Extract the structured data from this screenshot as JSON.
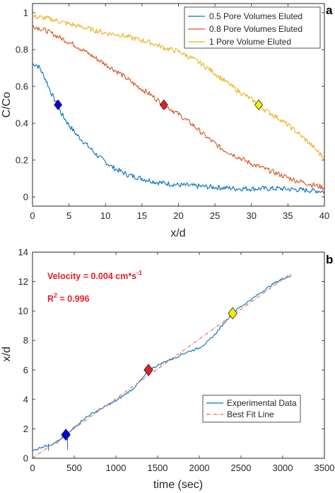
{
  "colors": {
    "blue": "#0072BD",
    "orange": "#D95319",
    "yellow": "#EDB120",
    "fit": "#e8605a",
    "annotation": "#e8202a",
    "axis": "#262626"
  },
  "chart_data": [
    {
      "panel": "a",
      "type": "line",
      "xlabel": "x/d",
      "ylabel": "C/Co",
      "xlim": [
        0,
        40
      ],
      "ylim": [
        -0.05,
        1.05
      ],
      "xticks": [
        0,
        5,
        10,
        15,
        20,
        25,
        30,
        35,
        40
      ],
      "yticks": [
        0,
        0.2,
        0.4,
        0.6,
        0.8,
        1
      ],
      "grid": false,
      "legend_position": "top-right",
      "series": [
        {
          "name": "0.5 Pore Volumes Eluted",
          "color": "#0072BD",
          "x": [
            0,
            0.5,
            1,
            1.5,
            2,
            2.5,
            3,
            3.5,
            4,
            5,
            6,
            7,
            8,
            9,
            10,
            11,
            12,
            13,
            14,
            15,
            16,
            17,
            18,
            19,
            20,
            22,
            24,
            26,
            28,
            30,
            32,
            34,
            36,
            38,
            40
          ],
          "y": [
            0.72,
            0.72,
            0.7,
            0.66,
            0.62,
            0.57,
            0.53,
            0.49,
            0.45,
            0.39,
            0.34,
            0.3,
            0.26,
            0.22,
            0.19,
            0.16,
            0.14,
            0.12,
            0.11,
            0.1,
            0.09,
            0.08,
            0.075,
            0.07,
            0.065,
            0.06,
            0.055,
            0.05,
            0.045,
            0.045,
            0.045,
            0.045,
            0.04,
            0.035,
            0.03
          ]
        },
        {
          "name": "0.8 Pore Volumes Eluted",
          "color": "#D95319",
          "x": [
            0,
            2,
            4,
            6,
            8,
            10,
            12,
            14,
            16,
            18,
            20,
            22,
            24,
            26,
            28,
            30,
            32,
            34,
            36,
            38,
            40
          ],
          "y": [
            0.93,
            0.9,
            0.86,
            0.82,
            0.77,
            0.72,
            0.67,
            0.61,
            0.56,
            0.5,
            0.45,
            0.39,
            0.32,
            0.26,
            0.22,
            0.18,
            0.15,
            0.12,
            0.09,
            0.07,
            0.05
          ]
        },
        {
          "name": "1 Pore Volume Eluted",
          "color": "#EDB120",
          "x": [
            0,
            2,
            4,
            6,
            8,
            10,
            12,
            14,
            16,
            18,
            20,
            22,
            24,
            26,
            28,
            30,
            32,
            34,
            36,
            38,
            40
          ],
          "y": [
            0.98,
            0.97,
            0.95,
            0.93,
            0.91,
            0.89,
            0.88,
            0.86,
            0.84,
            0.81,
            0.79,
            0.75,
            0.7,
            0.64,
            0.58,
            0.53,
            0.47,
            0.42,
            0.36,
            0.29,
            0.21
          ]
        }
      ],
      "markers": [
        {
          "x": 3.5,
          "y": 0.5,
          "color": "#0000e0"
        },
        {
          "x": 18,
          "y": 0.5,
          "color": "#e0202a"
        },
        {
          "x": 31,
          "y": 0.5,
          "color": "#f5f000"
        }
      ]
    },
    {
      "panel": "b",
      "type": "line",
      "xlabel": "time (sec)",
      "ylabel": "x/d",
      "xlim": [
        0,
        3500
      ],
      "ylim": [
        0,
        14
      ],
      "xticks": [
        0,
        500,
        1000,
        1500,
        2000,
        2500,
        3000,
        3500
      ],
      "ytick_values": [
        0,
        2,
        4,
        6,
        8,
        10,
        12,
        14
      ],
      "xtick_labels": [
        "0",
        "500",
        "1000",
        "1500",
        "2000",
        "2500",
        "3000",
        "3500"
      ],
      "grid": false,
      "legend_position": "bottom-right",
      "annotation_velocity": "Velocity = 0.004 cm*s",
      "annotation_velocity_sup": "-1",
      "annotation_r2_prefix": "R",
      "annotation_r2_sup": "2",
      "annotation_r2_value": " = 0.996",
      "series": [
        {
          "name": "Experimental Data",
          "color": "#0072BD",
          "x": [
            0,
            100,
            200,
            300,
            400,
            500,
            600,
            700,
            800,
            900,
            1000,
            1100,
            1200,
            1300,
            1400,
            1500,
            1600,
            1700,
            1800,
            1900,
            2000,
            2100,
            2200,
            2300,
            2400,
            2500,
            2600,
            2700,
            2800,
            2900,
            3000,
            3100
          ],
          "y": [
            0.5,
            0.75,
            0.9,
            1.1,
            1.5,
            2.1,
            2.6,
            3.0,
            3.3,
            3.6,
            3.9,
            4.3,
            4.7,
            5.3,
            6.0,
            6.3,
            6.6,
            6.8,
            7.1,
            7.3,
            7.5,
            7.9,
            8.5,
            9.2,
            9.9,
            10.3,
            10.7,
            11.1,
            11.5,
            11.9,
            12.2,
            12.4
          ]
        },
        {
          "name": "Best Fit Line",
          "color": "#e8605a",
          "dashed": true,
          "x": [
            0,
            3100
          ],
          "y": [
            0.0,
            12.55
          ]
        }
      ],
      "markers": [
        {
          "x": 400,
          "y": 1.6,
          "color": "#0000e0"
        },
        {
          "x": 1390,
          "y": 6.0,
          "color": "#e0202a"
        },
        {
          "x": 2400,
          "y": 9.85,
          "color": "#f5f000"
        }
      ]
    }
  ]
}
